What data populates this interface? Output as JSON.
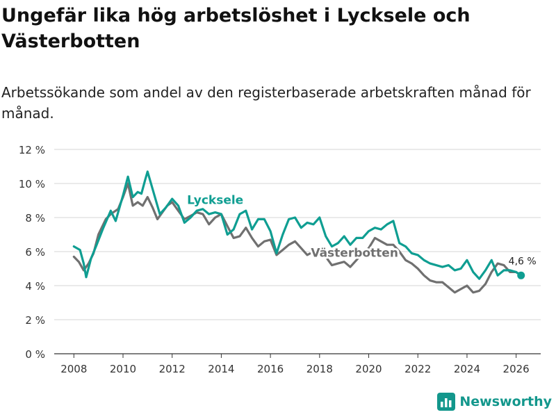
{
  "title": "Ungefär lika hög arbetslöshet i Lycksele och Västerbotten",
  "subtitle": "Arbetssökande som andel av den registerbaserade arbetskraften månad för månad.",
  "brand": {
    "name": "Newsworthy"
  },
  "colors": {
    "lycksele": "#0f9e92",
    "vasterbotten": "#707070",
    "grid": "#d6d6d6",
    "axis": "#333333"
  },
  "chart_data": {
    "type": "line",
    "title": "Ungefär lika hög arbetslöshet i Lycksele och Västerbotten",
    "ylabel": "",
    "xlabel": "",
    "ylim": [
      0,
      12
    ],
    "xlim": [
      2007.2,
      2027.0
    ],
    "y_ticks": [
      0,
      2,
      4,
      6,
      8,
      10,
      12
    ],
    "y_tick_labels": [
      "0 %",
      "2 %",
      "4 %",
      "6 %",
      "8 %",
      "10 %",
      "12 %"
    ],
    "x_ticks": [
      2008,
      2010,
      2012,
      2014,
      2016,
      2018,
      2020,
      2022,
      2024,
      2026
    ],
    "x_tick_labels": [
      "2008",
      "2010",
      "2012",
      "2014",
      "2016",
      "2018",
      "2020",
      "2022",
      "2024",
      "2026"
    ],
    "end_label": "4,6 %",
    "series": [
      {
        "name": "Lycksele",
        "x": [
          2008.0,
          2008.25,
          2008.4,
          2008.5,
          2008.7,
          2008.9,
          2009.2,
          2009.5,
          2009.7,
          2010.0,
          2010.2,
          2010.4,
          2010.6,
          2010.75,
          2010.9,
          2011.0,
          2011.2,
          2011.5,
          2011.75,
          2012.0,
          2012.25,
          2012.5,
          2012.75,
          2013.0,
          2013.25,
          2013.5,
          2013.75,
          2014.0,
          2014.25,
          2014.5,
          2014.75,
          2015.0,
          2015.25,
          2015.5,
          2015.75,
          2016.0,
          2016.25,
          2016.5,
          2016.75,
          2017.0,
          2017.25,
          2017.5,
          2017.75,
          2018.0,
          2018.25,
          2018.5,
          2018.75,
          2019.0,
          2019.25,
          2019.5,
          2019.75,
          2020.0,
          2020.25,
          2020.5,
          2020.75,
          2021.0,
          2021.25,
          2021.5,
          2021.75,
          2022.0,
          2022.25,
          2022.5,
          2022.75,
          2023.0,
          2023.25,
          2023.5,
          2023.75,
          2024.0,
          2024.25,
          2024.5,
          2024.75,
          2025.0,
          2025.25,
          2025.5,
          2025.75,
          2026.0,
          2026.2
        ],
        "values": [
          6.3,
          6.1,
          5.3,
          4.5,
          5.6,
          6.3,
          7.4,
          8.4,
          7.8,
          9.3,
          10.4,
          9.2,
          9.5,
          9.4,
          10.2,
          10.7,
          9.7,
          8.2,
          8.6,
          9.1,
          8.7,
          7.7,
          8.0,
          8.4,
          8.5,
          8.2,
          8.3,
          8.2,
          7.0,
          7.3,
          8.2,
          8.4,
          7.3,
          7.9,
          7.9,
          7.2,
          5.9,
          7.0,
          7.9,
          8.0,
          7.4,
          7.7,
          7.6,
          8.0,
          6.9,
          6.3,
          6.5,
          6.9,
          6.4,
          6.8,
          6.8,
          7.2,
          7.4,
          7.3,
          7.6,
          7.8,
          6.5,
          6.3,
          5.9,
          5.8,
          5.5,
          5.3,
          5.2,
          5.1,
          5.2,
          4.9,
          5.0,
          5.5,
          4.8,
          4.4,
          4.9,
          5.5,
          4.6,
          4.9,
          4.9,
          4.8,
          4.6
        ]
      },
      {
        "name": "Västerbotten",
        "x": [
          2008.0,
          2008.2,
          2008.4,
          2008.6,
          2008.8,
          2009.0,
          2009.3,
          2009.5,
          2009.8,
          2010.0,
          2010.2,
          2010.4,
          2010.6,
          2010.8,
          2011.0,
          2011.2,
          2011.4,
          2011.6,
          2011.8,
          2012.0,
          2012.25,
          2012.5,
          2012.75,
          2013.0,
          2013.25,
          2013.5,
          2013.75,
          2014.0,
          2014.25,
          2014.5,
          2014.75,
          2015.0,
          2015.25,
          2015.5,
          2015.75,
          2016.0,
          2016.25,
          2016.5,
          2016.75,
          2017.0,
          2017.25,
          2017.5,
          2017.75,
          2018.0,
          2018.25,
          2018.5,
          2018.75,
          2019.0,
          2019.25,
          2019.5,
          2019.75,
          2020.0,
          2020.25,
          2020.5,
          2020.75,
          2021.0,
          2021.25,
          2021.5,
          2021.75,
          2022.0,
          2022.25,
          2022.5,
          2022.75,
          2023.0,
          2023.25,
          2023.5,
          2023.75,
          2024.0,
          2024.25,
          2024.5,
          2024.75,
          2025.0,
          2025.25,
          2025.5,
          2025.75,
          2026.0,
          2026.2
        ],
        "values": [
          5.7,
          5.4,
          4.9,
          5.3,
          5.9,
          7.0,
          7.9,
          8.2,
          8.5,
          9.2,
          10.0,
          8.7,
          8.9,
          8.7,
          9.2,
          8.6,
          7.9,
          8.3,
          8.7,
          8.9,
          8.4,
          7.9,
          8.1,
          8.3,
          8.2,
          7.6,
          8.0,
          8.2,
          7.5,
          6.8,
          6.9,
          7.4,
          6.8,
          6.3,
          6.6,
          6.7,
          5.8,
          6.1,
          6.4,
          6.6,
          6.2,
          5.8,
          6.0,
          6.2,
          5.7,
          5.2,
          5.3,
          5.4,
          5.1,
          5.5,
          5.9,
          6.2,
          6.8,
          6.6,
          6.4,
          6.4,
          6.0,
          5.5,
          5.3,
          5.0,
          4.6,
          4.3,
          4.2,
          4.2,
          3.9,
          3.6,
          3.8,
          4.0,
          3.6,
          3.7,
          4.1,
          4.8,
          5.3,
          5.2,
          4.8,
          4.8,
          4.6
        ]
      }
    ]
  }
}
